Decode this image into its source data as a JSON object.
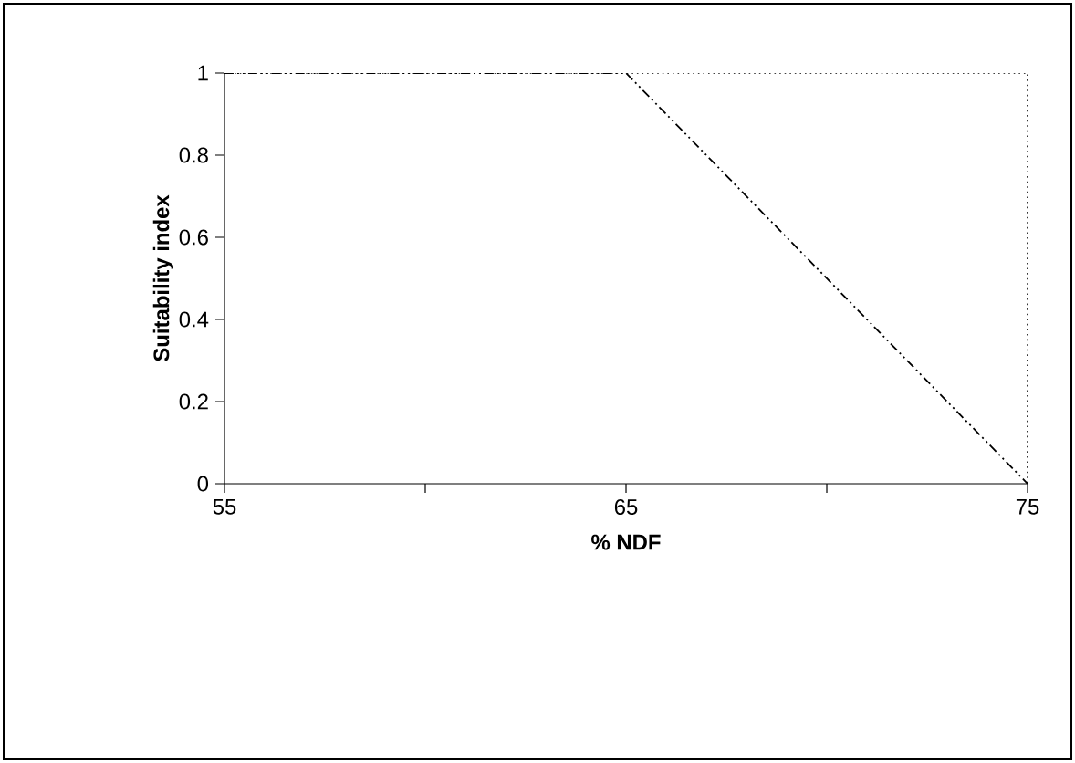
{
  "chart_data": {
    "type": "line",
    "xlabel": "% NDF",
    "ylabel": "Suitability index",
    "x": [
      55,
      65,
      75
    ],
    "series": [
      {
        "color": "#000000",
        "values": [
          1,
          1,
          0
        ],
        "line_style": "dashed"
      }
    ],
    "xlim": [
      55,
      75
    ],
    "xticks": [
      55,
      65,
      75
    ],
    "ylim": [
      0,
      1
    ],
    "yticks": [
      0,
      0.2,
      0.4,
      0.6,
      0.8,
      1
    ],
    "grid": false,
    "marker": "none"
  }
}
